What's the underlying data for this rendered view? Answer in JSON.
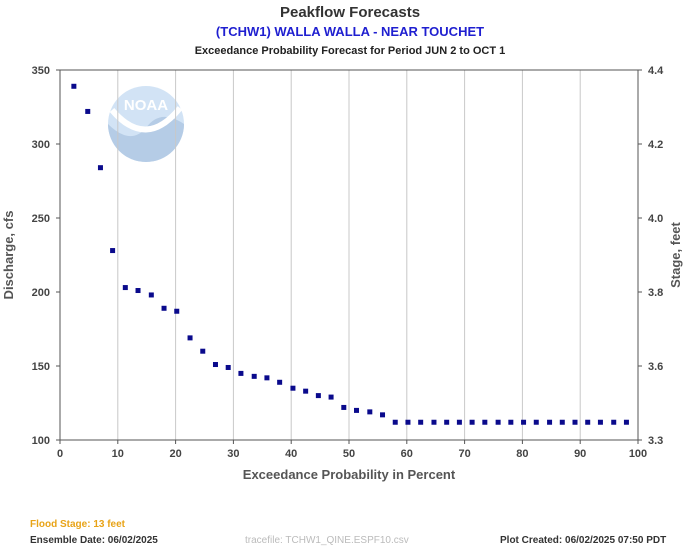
{
  "header": {
    "title": "Peakflow Forecasts",
    "subtitle": "(TCHW1) WALLA WALLA - NEAR TOUCHET",
    "period": "Exceedance Probability Forecast for Period JUN 2 to OCT 1"
  },
  "footer": {
    "flood_stage": "Flood Stage: 13 feet",
    "ensemble_date": "Ensemble Date: 06/02/2025",
    "tracefile": "tracefile: TCHW1_QINE.ESPF10.csv",
    "plot_created": "Plot Created: 06/02/2025 07:50 PDT"
  },
  "colors": {
    "marker": "#0a0a8c",
    "gridline": "#c8c8c8",
    "flood_stage": "#e8a317",
    "subtitle": "#1f1fd0"
  },
  "logo": {
    "text": "NOAA"
  },
  "chart_data": {
    "type": "scatter",
    "title": "Peakflow Forecasts",
    "xlabel": "Exceedance Probability in Percent",
    "ylabel": "Discharge, cfs",
    "y2label": "Stage, feet",
    "xlim": [
      0,
      100
    ],
    "ylim": [
      100,
      350
    ],
    "y2lim": [
      3.3,
      4.4
    ],
    "xticks": [
      0,
      10,
      20,
      30,
      40,
      50,
      60,
      70,
      80,
      90,
      100
    ],
    "yticks": [
      100,
      150,
      200,
      250,
      300,
      350
    ],
    "y2ticks": [
      "3.3",
      "3.6",
      "3.8",
      "4.0",
      "4.2",
      "4.4"
    ],
    "grid": "vertical",
    "marker": "square",
    "series": [
      {
        "points": [
          [
            2.4,
            339
          ],
          [
            4.8,
            322
          ],
          [
            7.0,
            284
          ],
          [
            9.1,
            228
          ],
          [
            11.3,
            203
          ],
          [
            13.5,
            201
          ],
          [
            15.8,
            198
          ],
          [
            18.0,
            189
          ],
          [
            20.2,
            187
          ],
          [
            22.5,
            169
          ],
          [
            24.7,
            160
          ],
          [
            26.9,
            151
          ],
          [
            29.1,
            149
          ],
          [
            31.3,
            145
          ],
          [
            33.6,
            143
          ],
          [
            35.8,
            142
          ],
          [
            38.0,
            139
          ],
          [
            40.3,
            135
          ],
          [
            42.5,
            133
          ],
          [
            44.7,
            130
          ],
          [
            46.9,
            129
          ],
          [
            49.1,
            122
          ],
          [
            51.3,
            120
          ],
          [
            53.6,
            119
          ],
          [
            55.8,
            117
          ],
          [
            58.0,
            112
          ],
          [
            60.2,
            112
          ],
          [
            62.4,
            112
          ],
          [
            64.7,
            112
          ],
          [
            66.9,
            112
          ],
          [
            69.1,
            112
          ],
          [
            71.3,
            112
          ],
          [
            73.5,
            112
          ],
          [
            75.8,
            112
          ],
          [
            78.0,
            112
          ],
          [
            80.2,
            112
          ],
          [
            82.4,
            112
          ],
          [
            84.7,
            112
          ],
          [
            86.9,
            112
          ],
          [
            89.1,
            112
          ],
          [
            91.3,
            112
          ],
          [
            93.5,
            112
          ],
          [
            95.8,
            112
          ],
          [
            98.0,
            112
          ]
        ]
      }
    ]
  }
}
